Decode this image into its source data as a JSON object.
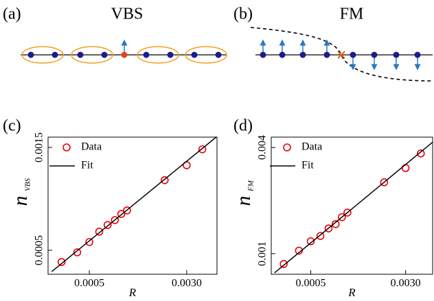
{
  "panels": [
    {
      "label": "(a)",
      "title": "VBS"
    },
    {
      "label": "(b)",
      "title": "FM"
    }
  ],
  "chart_data": [
    {
      "type": "scatter",
      "panel_label": "(c)",
      "x_label": "R",
      "y_label": "n",
      "y_label_sub": "VBS",
      "xlog": true,
      "ylog": true,
      "xlim": [
        0.000234,
        0.00524
      ],
      "ylim": [
        0.000387,
        0.001674
      ],
      "xticks": [
        0.0005,
        {
          "value": 0.003,
          "label": "0.0030"
        }
      ],
      "yticks": [
        0.0005,
        0.0015
      ],
      "series": [
        {
          "name": "Data",
          "style": "marker",
          "color": "#e8000b",
          "x": [
            0.0003,
            0.0004,
            0.0005,
            0.0006,
            0.0007,
            0.0008,
            0.0009,
            0.001,
            0.002,
            0.003,
            0.004
          ],
          "values": [
            0.000441,
            0.000489,
            0.000546,
            0.00061,
            0.000655,
            0.00069,
            0.000737,
            0.000765,
            0.001057,
            0.00124,
            0.00147
          ]
        },
        {
          "name": "Fit",
          "style": "line",
          "color": "#000000",
          "x": [
            0.00025,
            0.0052
          ],
          "values": [
            0.000398,
            0.00168
          ]
        }
      ]
    },
    {
      "type": "scatter",
      "panel_label": "(d)",
      "x_label": "R",
      "y_label": "n",
      "y_label_sub": "FM",
      "xlog": true,
      "ylog": true,
      "xlim": [
        0.000237,
        0.005
      ],
      "ylim": [
        0.000764,
        0.00458
      ],
      "xticks": [
        0.0005,
        {
          "value": 0.003,
          "label": "0.0030"
        }
      ],
      "yticks": [
        0.001,
        0.004
      ],
      "series": [
        {
          "name": "Data",
          "style": "marker",
          "color": "#e8000b",
          "x": [
            0.0003,
            0.0004,
            0.0005,
            0.0006,
            0.0007,
            0.0008,
            0.0009,
            0.001,
            0.002,
            0.003,
            0.004
          ],
          "values": [
            0.000874,
            0.00104,
            0.001175,
            0.00126,
            0.00139,
            0.00147,
            0.00161,
            0.00171,
            0.00254,
            0.00306,
            0.0037
          ]
        },
        {
          "name": "Fit",
          "style": "line",
          "color": "#000000",
          "x": [
            0.000252,
            0.005
          ],
          "values": [
            0.000778,
            0.00429
          ]
        }
      ]
    }
  ]
}
